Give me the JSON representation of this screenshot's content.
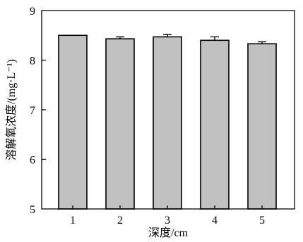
{
  "chart_data": {
    "type": "bar",
    "categories": [
      "1",
      "2",
      "3",
      "4",
      "5"
    ],
    "values": [
      8.5,
      8.43,
      8.47,
      8.4,
      8.33
    ],
    "errors": [
      0.0,
      0.04,
      0.05,
      0.07,
      0.04
    ],
    "xlabel": "深度/cm",
    "ylabel": "溶解氧浓度/(mg·L⁻¹)",
    "ylim": [
      5,
      9
    ],
    "yticks": [
      "5",
      "6",
      "7",
      "8",
      "9"
    ],
    "bar_color": "#c0c0c0",
    "grid": false
  }
}
